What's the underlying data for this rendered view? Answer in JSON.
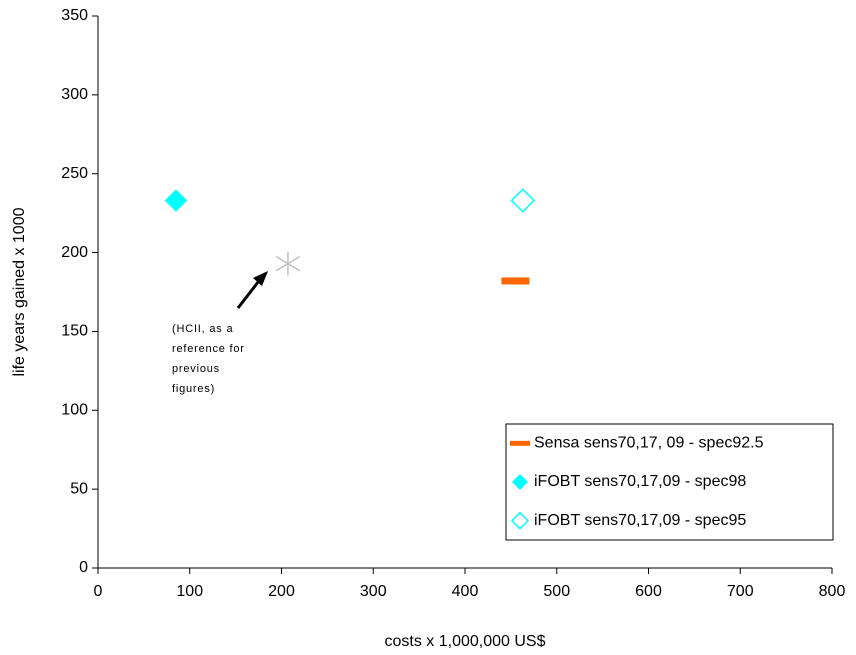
{
  "chart_data": {
    "type": "scatter",
    "x_label": "costs x 1,000,000 US$",
    "y_label": "life years gained x 1000",
    "xlim": [
      0,
      800
    ],
    "xticks": [
      0,
      100,
      200,
      300,
      400,
      500,
      600,
      700,
      800
    ],
    "ylim": [
      0,
      350
    ],
    "yticks": [
      0,
      50,
      100,
      150,
      200,
      250,
      300,
      350
    ],
    "grid": false,
    "legend": "lower right",
    "series": [
      {
        "name": "Sensa sens70,17, 09 - spec92.5",
        "color": "#ff6600",
        "marker": "dash",
        "x": [
          455
        ],
        "values": [
          182
        ]
      },
      {
        "name": "iFOBT sens70,17,09 - spec98",
        "color": "#00ffff",
        "marker": "diamond",
        "x": [
          85
        ],
        "values": [
          233
        ]
      },
      {
        "name": "iFOBT sens70,17,09 - spec95",
        "color": "#00ffff",
        "marker": "diamond-open",
        "x": [
          463
        ],
        "values": [
          233
        ]
      }
    ],
    "reference_point": {
      "color": "#c0c0c0",
      "marker": "asterisk",
      "x": 207,
      "y": 193
    },
    "annotation": [
      "(HCII, as a",
      "reference for",
      "previous",
      "figures)"
    ]
  }
}
